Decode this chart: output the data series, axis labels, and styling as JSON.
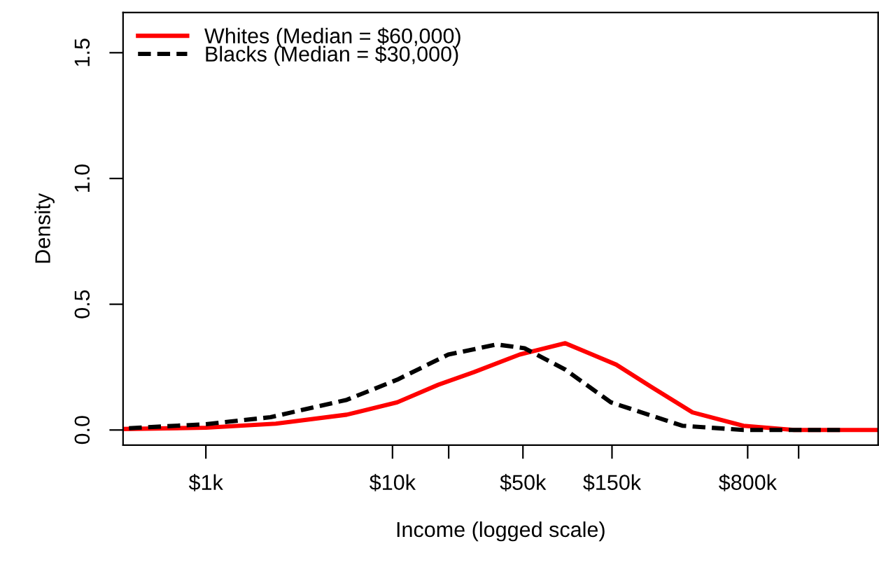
{
  "chart_data": {
    "type": "line",
    "xlabel": "Income (logged scale)",
    "ylabel": "Density",
    "log": "x",
    "xlim": [
      360,
      4000000
    ],
    "ylim": [
      -0.06,
      1.66
    ],
    "xticks": [
      {
        "value": 1000,
        "label": "$1k"
      },
      {
        "value": 10000,
        "label": "$10k"
      },
      {
        "value": 20000,
        "label": null
      },
      {
        "value": 50000,
        "label": "$50k"
      },
      {
        "value": 150000,
        "label": "$150k"
      },
      {
        "value": 800000,
        "label": "$800k"
      },
      {
        "value": 1500000,
        "label": null
      }
    ],
    "yticks": [
      {
        "value": 0,
        "label": "0.0"
      },
      {
        "value": 0.5,
        "label": "0.5"
      },
      {
        "value": 1.0,
        "label": "1.0"
      },
      {
        "value": 1.5,
        "label": "1.5"
      }
    ],
    "grid": false,
    "legend": "top left",
    "series": [
      {
        "name": "Whites (Median = $60,000)",
        "color": "#ff0000",
        "line_style": "solid",
        "x": [
          360,
          1000,
          2370,
          5690,
          10600,
          17600,
          27300,
          48000,
          84300,
          158000,
          245000,
          405000,
          759000,
          1420000,
          4000000
        ],
        "values": [
          0.004,
          0.009,
          0.025,
          0.061,
          0.11,
          0.18,
          0.23,
          0.3,
          0.345,
          0.26,
          0.17,
          0.07,
          0.017,
          0.0,
          0.0
        ]
      },
      {
        "name": "Blacks (Median = $30,000)",
        "color": "#000000",
        "line_style": "dashed",
        "x": [
          360,
          1000,
          2220,
          5690,
          10600,
          19900,
          36200,
          51000,
          84300,
          148000,
          357000,
          759000,
          2500000
        ],
        "values": [
          0.006,
          0.023,
          0.051,
          0.12,
          0.2,
          0.3,
          0.34,
          0.325,
          0.24,
          0.11,
          0.017,
          0.0,
          0.0
        ]
      }
    ]
  }
}
